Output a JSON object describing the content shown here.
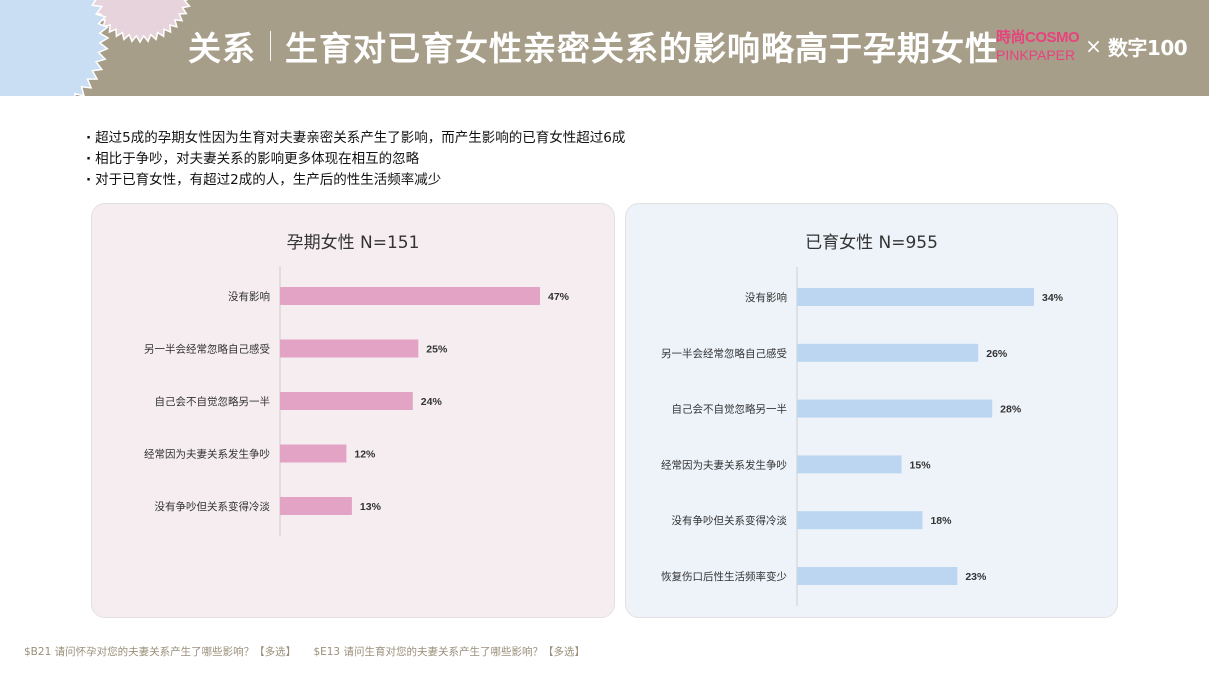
{
  "header": {
    "section": "关系",
    "title": "生育对已育女性亲密关系的影响略高于孕期女性",
    "logo_cosmo_top": "時尚COSMO",
    "logo_cosmo_bottom": "PINKPAPER",
    "logo_x": "×",
    "logo_shuzi": "数字100",
    "colors": {
      "header_bg": "#a79e89",
      "deco_pink": "#e7d3dc",
      "deco_blue": "#c9def2"
    }
  },
  "bullets": [
    "超过5成的孕期女性因为生育对夫妻亲密关系产生了影响，而产生影响的已育女性超过6成",
    "相比于争吵，对夫妻关系的影响更多体现在相互的忽略",
    "对于已育女性，有超过2成的人，生产后的性生活频率减少"
  ],
  "chart_data": [
    {
      "type": "bar",
      "orientation": "horizontal",
      "title": "孕期女性  N=151",
      "categories": [
        "没有影响",
        "另一半会经常忽略自己感受",
        "自己会不自觉忽略另一半",
        "经常因为夫妻关系发生争吵",
        "没有争吵但关系变得冷淡"
      ],
      "values": [
        47,
        25,
        24,
        12,
        13
      ],
      "labels": [
        "47%",
        "25%",
        "24%",
        "12%",
        "13%"
      ],
      "unit": "%",
      "xlim": [
        0,
        47
      ],
      "color": "#e3a3c4",
      "grid": false
    },
    {
      "type": "bar",
      "orientation": "horizontal",
      "title": "已育女性  N=955",
      "categories": [
        "没有影响",
        "另一半会经常忽略自己感受",
        "自己会不自觉忽略另一半",
        "经常因为夫妻关系发生争吵",
        "没有争吵但关系变得冷淡",
        "恢复伤口后性生活频率变少"
      ],
      "values": [
        34,
        26,
        28,
        15,
        18,
        23
      ],
      "labels": [
        "34%",
        "26%",
        "28%",
        "15%",
        "18%",
        "23%"
      ],
      "unit": "%",
      "xlim": [
        0,
        34
      ],
      "color": "#bcd6f1",
      "grid": false
    }
  ],
  "footnotes": [
    "$B21 请问怀孕对您的夫妻关系产生了哪些影响？【多选】",
    "$E13 请问生育对您的夫妻关系产生了哪些影响？【多选】"
  ]
}
